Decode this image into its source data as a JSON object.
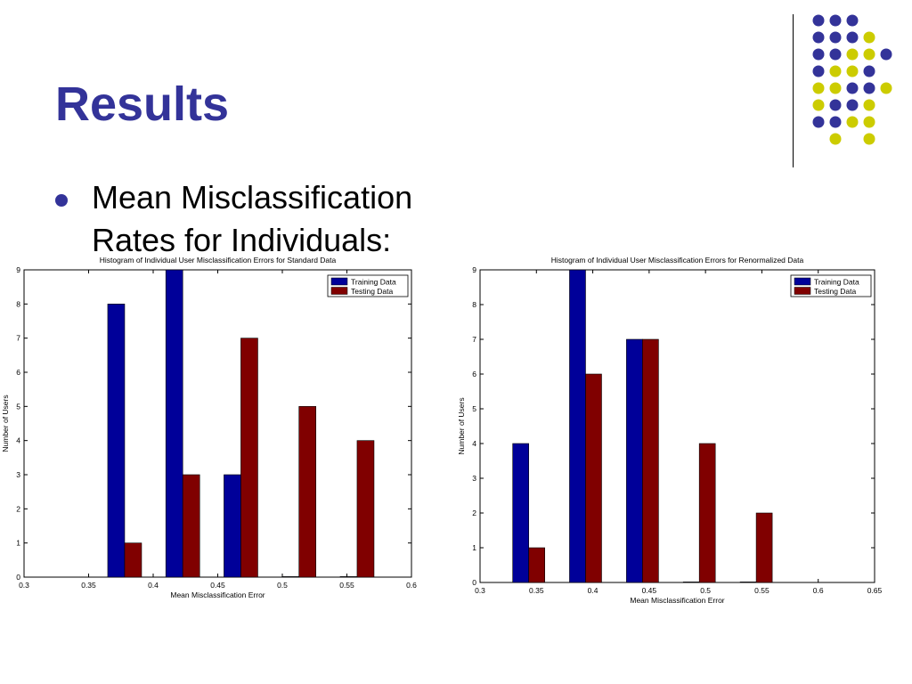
{
  "slide": {
    "title": "Results",
    "bullet_lines": [
      "Mean Misclassification",
      "Rates for Individuals:"
    ]
  },
  "decoration": {
    "colors": {
      "navy": "#333399",
      "lime": "#cccc00"
    },
    "dot_rows": [
      [
        "navy",
        "navy",
        "navy",
        null,
        null
      ],
      [
        "navy",
        "navy",
        "navy",
        "lime",
        null
      ],
      [
        "navy",
        "navy",
        "lime",
        "lime",
        "navy"
      ],
      [
        "navy",
        "lime",
        "lime",
        "navy",
        null
      ],
      [
        "lime",
        "lime",
        "navy",
        "navy",
        "lime"
      ],
      [
        "lime",
        "navy",
        "navy",
        "lime",
        null
      ],
      [
        "navy",
        "navy",
        "lime",
        "lime",
        null
      ],
      [
        null,
        "lime",
        null,
        "lime",
        null
      ]
    ]
  },
  "chart_data": [
    {
      "type": "bar",
      "title": "Histogram of Individual User Misclassification Errors for Standard Data",
      "xlabel": "Mean Misclassification Error",
      "ylabel": "Number of Users",
      "xlim": [
        0.3,
        0.6
      ],
      "ylim": [
        0,
        9
      ],
      "xticks": [
        "0.3",
        "0.35",
        "0.4",
        "0.45",
        "0.5",
        "0.55",
        "0.6"
      ],
      "yticks": [
        "0",
        "1",
        "2",
        "3",
        "4",
        "5",
        "6",
        "7",
        "8",
        "9"
      ],
      "legend_position": "top-right",
      "x": [
        0.3779,
        0.4229,
        0.4679,
        0.5129,
        0.5579
      ],
      "series": [
        {
          "name": "Training Data",
          "color": "#000099",
          "values": [
            8,
            9,
            3,
            0,
            0
          ]
        },
        {
          "name": "Testing Data",
          "color": "#800000",
          "values": [
            1,
            3,
            7,
            5,
            4
          ]
        }
      ]
    },
    {
      "type": "bar",
      "title": "Histogram of Individual User Misclassification Errors for Renormalized Data",
      "xlabel": "Mean Misclassification Error",
      "ylabel": "Number of Users",
      "xlim": [
        0.3,
        0.65
      ],
      "ylim": [
        0,
        9
      ],
      "xticks": [
        "0.3",
        "0.35",
        "0.4",
        "0.45",
        "0.5",
        "0.55",
        "0.6",
        "0.65"
      ],
      "yticks": [
        "0",
        "1",
        "2",
        "3",
        "4",
        "5",
        "6",
        "7",
        "8",
        "9"
      ],
      "legend_position": "top-right",
      "x": [
        0.3432,
        0.3936,
        0.4441,
        0.4945,
        0.545
      ],
      "series": [
        {
          "name": "Training Data",
          "color": "#000099",
          "values": [
            4,
            9,
            7,
            0,
            0
          ]
        },
        {
          "name": "Testing Data",
          "color": "#800000",
          "values": [
            1,
            6,
            7,
            4,
            2
          ]
        }
      ]
    }
  ]
}
